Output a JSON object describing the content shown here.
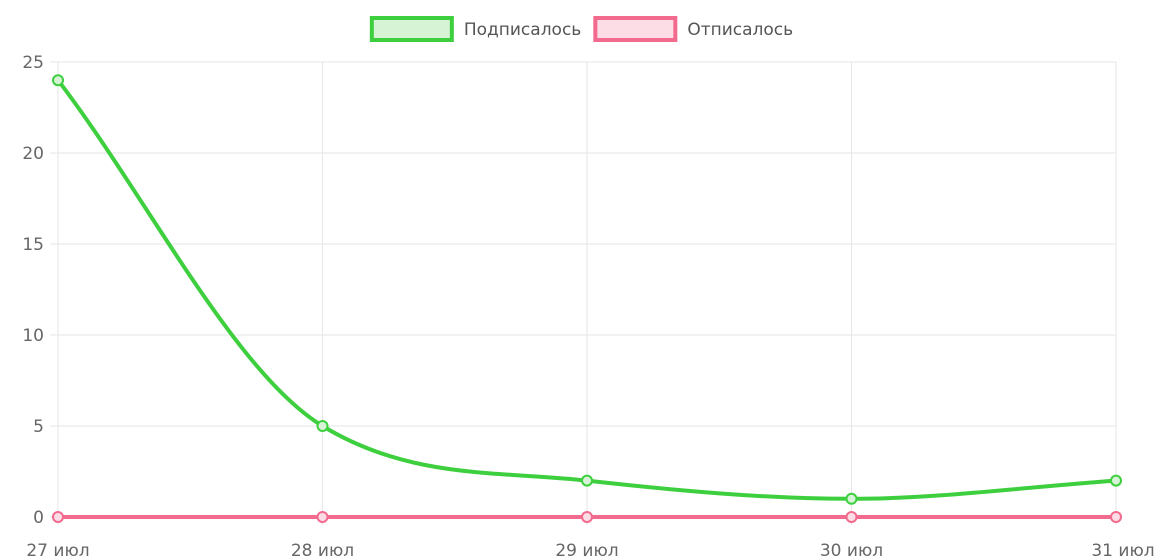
{
  "chart_data": {
    "type": "line",
    "categories": [
      "27 июл",
      "28 июл",
      "29 июл",
      "30 июл",
      "31 июл"
    ],
    "series": [
      {
        "name": "Подписалось",
        "values": [
          24,
          5,
          2,
          1,
          2
        ],
        "color": "#3ecf3e",
        "fill": "#d6f3d6"
      },
      {
        "name": "Отписалось",
        "values": [
          0,
          0,
          0,
          0,
          0
        ],
        "color": "#f26a8d",
        "fill": "#fcdde5"
      }
    ],
    "ylim": [
      0,
      25
    ],
    "yticks": [
      0,
      5,
      10,
      15,
      20,
      25
    ],
    "grid": true,
    "legend": "top",
    "smooth": true
  }
}
